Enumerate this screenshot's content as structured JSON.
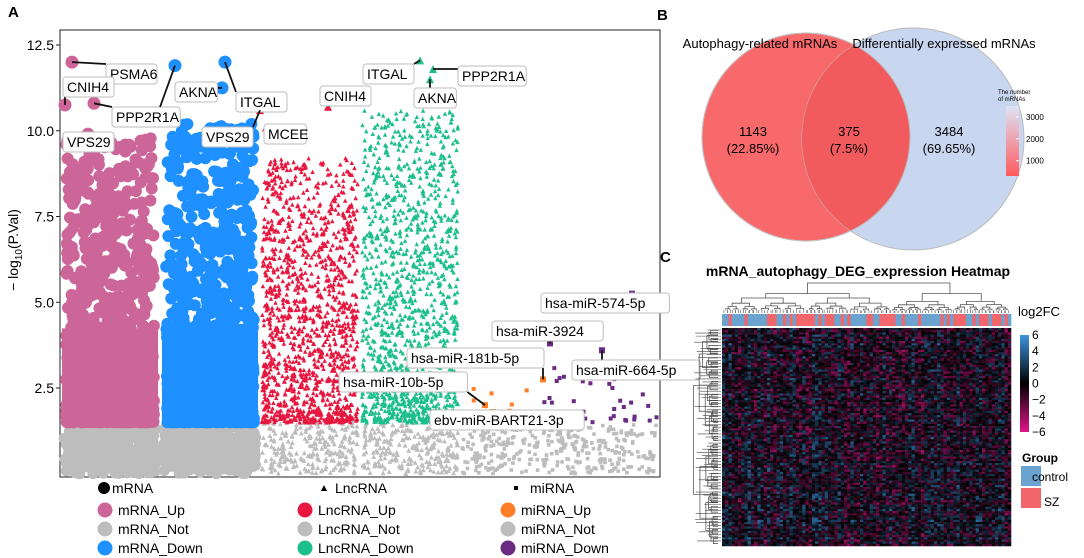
{
  "panel_letters": {
    "a": "A",
    "b": "B",
    "c": "C"
  },
  "chart_data": [
    {
      "type": "scatter",
      "panel": "A",
      "ylabel_prefix": "− log",
      "ylabel_sub": "10",
      "ylabel_suffix": "(P.Val)",
      "ylim": [
        0,
        12.5
      ],
      "yticks": [
        2.5,
        5.0,
        7.5,
        10.0,
        12.5
      ],
      "ytick_labels": [
        "2.5",
        "5.0",
        "7.5",
        "10.0",
        "12.5"
      ],
      "not_threshold": 1.5,
      "groups": [
        {
          "id": "mrna_up",
          "kind": "mRNA",
          "color": "#cc6699",
          "shape": "circle",
          "band": [
            0,
            1
          ],
          "min": 1.5,
          "max": 9.8
        },
        {
          "id": "mrna_down",
          "kind": "mRNA",
          "color": "#1e90ff",
          "shape": "circle",
          "band": [
            1,
            2
          ],
          "min": 1.5,
          "max": 10.2
        },
        {
          "id": "lnc_up",
          "kind": "LncRNA",
          "color": "#e8173f",
          "shape": "triangle",
          "band": [
            2,
            3
          ],
          "min": 1.5,
          "max": 9.2
        },
        {
          "id": "lnc_down",
          "kind": "LncRNA",
          "color": "#1dbf8c",
          "shape": "triangle",
          "band": [
            3,
            4
          ],
          "min": 1.5,
          "max": 10.6
        },
        {
          "id": "mirna_up",
          "kind": "miRNA",
          "color": "#ff7f27",
          "shape": "square",
          "band": [
            4,
            4.8
          ],
          "min": 1.5,
          "max": 2.6
        },
        {
          "id": "mirna_down",
          "kind": "miRNA",
          "color": "#6a2c82",
          "shape": "square",
          "band": [
            4.8,
            6
          ],
          "min": 1.5,
          "max": 3.2
        }
      ],
      "not_color": "#bdbdbd",
      "highlights": [
        {
          "group": "mrna_up",
          "label": "PSMA6",
          "point": [
            0.12,
            12.0
          ]
        },
        {
          "group": "mrna_up",
          "label": "CNIH4",
          "point": [
            0.05,
            10.75
          ]
        },
        {
          "group": "mrna_up",
          "label": "PPP2R1A",
          "point": [
            0.34,
            10.8
          ]
        },
        {
          "group": "mrna_up",
          "label": "VPS29",
          "point": [
            0.28,
            9.9
          ]
        },
        {
          "group": "mrna_down",
          "label": "AKNA",
          "point": [
            1.62,
            11.25
          ]
        },
        {
          "group": "mrna_down",
          "label": "ITGAL",
          "point": [
            1.65,
            12.0
          ]
        },
        {
          "group": "mrna_down",
          "label": "PPP2R1A",
          "point": [
            1.15,
            11.9
          ]
        },
        {
          "group": "lnc_up",
          "label": "VPS29",
          "point": [
            2.0,
            10.6
          ]
        },
        {
          "group": "lnc_up",
          "label": "MCEE",
          "point": [
            2.06,
            10.1
          ]
        },
        {
          "group": "lnc_up",
          "label": "CNIH4",
          "point": [
            2.68,
            10.7
          ]
        },
        {
          "group": "lnc_down",
          "label": "ITGAL",
          "point": [
            3.6,
            12.05
          ]
        },
        {
          "group": "lnc_down",
          "label": "AKNA",
          "point": [
            3.7,
            11.5
          ]
        },
        {
          "group": "lnc_down",
          "label": "PPP2R1A",
          "point": [
            3.73,
            11.8
          ]
        },
        {
          "group": "mirna_down",
          "label": "hsa-miR-574-5p",
          "point": [
            5.72,
            5.25
          ]
        },
        {
          "group": "mirna_down",
          "label": "hsa-miR-3924",
          "point": [
            4.9,
            3.8
          ]
        },
        {
          "group": "mirna_up",
          "label": "hsa-miR-181b-5p",
          "point": [
            4.83,
            2.75
          ]
        },
        {
          "group": "mirna_down",
          "label": "hsa-miR-664-5p",
          "point": [
            5.42,
            3.6
          ]
        },
        {
          "group": "mirna_up",
          "label": "hsa-miR-10b-5p",
          "point": [
            4.25,
            2.0
          ]
        },
        {
          "group": "mirna_up",
          "label": "ebv-miR-BART21-3p",
          "point": [
            4.33,
            1.8
          ]
        }
      ],
      "legend": {
        "shape_titles": {
          "mrna": "mRNA",
          "lncrna": "LncRNA",
          "mirna": "miRNA"
        },
        "items": [
          {
            "label": "mRNA_Up",
            "color": "#cc6699"
          },
          {
            "label": "mRNA_Not",
            "color": "#bdbdbd"
          },
          {
            "label": "mRNA_Down",
            "color": "#1e90ff"
          },
          {
            "label": "LncRNA_Up",
            "color": "#e8173f"
          },
          {
            "label": "LncRNA_Not",
            "color": "#bdbdbd"
          },
          {
            "label": "LncRNA_Down",
            "color": "#1dbf8c"
          },
          {
            "label": "miRNA_Up",
            "color": "#ff7f27"
          },
          {
            "label": "miRNA_Not",
            "color": "#bdbdbd"
          },
          {
            "label": "miRNA_Down",
            "color": "#6a2c82"
          }
        ]
      }
    },
    {
      "type": "venn",
      "panel": "B",
      "sets": [
        {
          "name": "Autophagy-related mRNAs",
          "color": "#f8696b"
        },
        {
          "name": "Differentially expressed mRNAs",
          "color": "#c9d6f0"
        }
      ],
      "overlap_color": "#f25b5e",
      "regions": [
        {
          "count": "1143",
          "pct": "(22.85%)"
        },
        {
          "count": "375",
          "pct": "(7.5%)"
        },
        {
          "count": "3484",
          "pct": "(69.65%)"
        }
      ],
      "colorbar": {
        "title1": "The number",
        "title2": "of mRNAs",
        "ticks": [
          {
            "value": 3000,
            "label": "3000"
          },
          {
            "value": 2000,
            "label": "2000"
          },
          {
            "value": 1000,
            "label": "1000"
          }
        ],
        "range": [
          300,
          3500
        ],
        "colors": [
          "#ff5a5f",
          "#dde4f6"
        ]
      }
    },
    {
      "type": "heatmap",
      "panel": "C",
      "title": "mRNA_autophagy_DEG_expression Heatmap",
      "annotation_label": "log2FC",
      "scale": {
        "ticks": [
          6,
          4,
          2,
          0,
          -2,
          -4,
          -6
        ],
        "tick_labels": [
          "6",
          "4",
          "2",
          "0",
          "−2",
          "−4",
          "−6"
        ],
        "colors": [
          "#3f93e0",
          "#000000",
          "#e0158a"
        ]
      },
      "group_legend": {
        "title": "Group",
        "items": [
          {
            "label": "control",
            "color": "#6aa3cf"
          },
          {
            "label": "SZ",
            "color": "#f0666b"
          }
        ]
      }
    }
  ]
}
